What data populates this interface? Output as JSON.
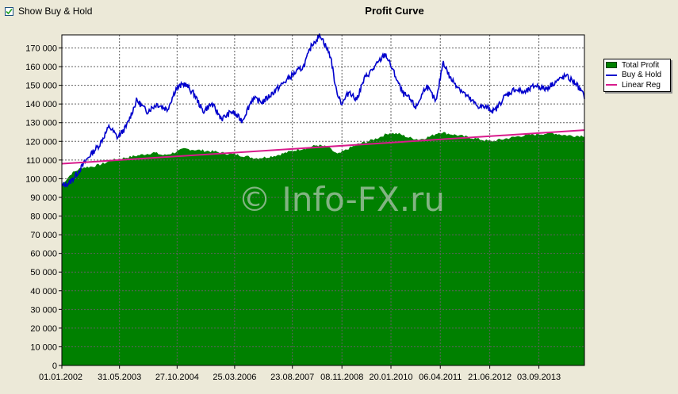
{
  "toolbar": {
    "show_buy_hold_label": "Show Buy & Hold",
    "show_buy_hold_checked": true
  },
  "watermark": "© Info-FX.ru",
  "colors": {
    "background": "#ece9d8",
    "plot_background": "#ffffff",
    "total_profit": "#008000",
    "buy_hold": "#0000cc",
    "linear_reg": "#d81b8c",
    "grid": "#606060"
  },
  "chart_data": {
    "type": "area",
    "title": "Profit Curve",
    "xlabel": "",
    "ylabel": "",
    "grid": true,
    "legend_position": "right",
    "ylim": [
      0,
      177000
    ],
    "xlim": [
      "2002-01-01",
      "2014-10-15"
    ],
    "y_ticks": [
      0,
      10000,
      20000,
      30000,
      40000,
      50000,
      60000,
      70000,
      80000,
      90000,
      100000,
      110000,
      120000,
      130000,
      140000,
      150000,
      160000,
      170000
    ],
    "y_tick_labels": [
      "0",
      "10 000",
      "20 000",
      "30 000",
      "40 000",
      "50 000",
      "60 000",
      "70 000",
      "80 000",
      "90 000",
      "100 000",
      "110 000",
      "120 000",
      "130 000",
      "140 000",
      "150 000",
      "160 000",
      "170 000"
    ],
    "x_tick_labels": [
      "01.01.2002",
      "31.05.2003",
      "27.10.2004",
      "25.03.2006",
      "23.08.2007",
      "08.11.2008",
      "20.01.2010",
      "06.04.2011",
      "21.06.2012",
      "03.09.2013"
    ],
    "x_tick_dates": [
      "2002-01-01",
      "2003-05-31",
      "2004-10-27",
      "2006-03-25",
      "2007-08-23",
      "2008-11-08",
      "2010-01-20",
      "2011-04-06",
      "2012-06-21",
      "2013-09-03"
    ],
    "series": [
      {
        "name": "Total Profit",
        "kind": "area",
        "x": [
          "2002-01-01",
          "2002-04-01",
          "2002-07-01",
          "2002-10-01",
          "2003-01-01",
          "2003-04-01",
          "2003-07-01",
          "2003-10-01",
          "2004-01-01",
          "2004-04-01",
          "2004-07-01",
          "2004-10-01",
          "2005-01-01",
          "2005-04-01",
          "2005-07-01",
          "2005-10-01",
          "2006-01-01",
          "2006-04-01",
          "2006-07-01",
          "2006-10-01",
          "2007-01-01",
          "2007-04-01",
          "2007-07-01",
          "2007-10-01",
          "2008-01-01",
          "2008-04-01",
          "2008-07-01",
          "2008-10-01",
          "2009-01-01",
          "2009-04-01",
          "2009-07-01",
          "2009-10-01",
          "2010-01-01",
          "2010-04-01",
          "2010-07-01",
          "2010-10-01",
          "2011-01-01",
          "2011-04-01",
          "2011-07-01",
          "2011-10-01",
          "2012-01-01",
          "2012-04-01",
          "2012-07-01",
          "2012-10-01",
          "2013-01-01",
          "2013-04-01",
          "2013-07-01",
          "2013-10-01",
          "2014-01-01",
          "2014-04-01",
          "2014-07-01",
          "2014-10-15"
        ],
        "values": [
          97000,
          103000,
          106000,
          106500,
          108000,
          110000,
          111000,
          112000,
          113000,
          114000,
          112500,
          114000,
          116000,
          115500,
          115000,
          114500,
          113500,
          113000,
          112000,
          111000,
          111500,
          112500,
          114000,
          115500,
          116500,
          118000,
          117000,
          113000,
          116000,
          118500,
          120000,
          122000,
          124500,
          124000,
          122000,
          121000,
          122500,
          125000,
          124000,
          123000,
          122000,
          121000,
          120000,
          121000,
          122000,
          123000,
          123500,
          124000,
          124500,
          123500,
          123000,
          123000
        ]
      },
      {
        "name": "Buy & Hold",
        "kind": "line",
        "x": [
          "2002-01-01",
          "2002-03-15",
          "2002-06-01",
          "2002-09-01",
          "2002-12-01",
          "2003-03-01",
          "2003-05-15",
          "2003-08-01",
          "2003-11-01",
          "2004-02-01",
          "2004-05-01",
          "2004-08-01",
          "2004-10-15",
          "2005-01-01",
          "2005-04-01",
          "2005-06-15",
          "2005-09-01",
          "2005-12-01",
          "2006-03-01",
          "2006-06-01",
          "2006-09-01",
          "2006-12-01",
          "2007-03-01",
          "2007-06-01",
          "2007-09-01",
          "2007-12-01",
          "2008-02-15",
          "2008-05-01",
          "2008-08-01",
          "2008-09-15",
          "2008-11-08",
          "2009-01-15",
          "2009-03-15",
          "2009-06-01",
          "2009-09-01",
          "2009-12-01",
          "2010-03-01",
          "2010-05-01",
          "2010-07-01",
          "2010-09-01",
          "2010-12-01",
          "2011-03-01",
          "2011-05-01",
          "2011-07-01",
          "2011-09-01",
          "2011-12-01",
          "2012-03-01",
          "2012-06-01",
          "2012-08-01",
          "2012-11-01",
          "2013-02-01",
          "2013-05-01",
          "2013-08-01",
          "2013-11-01",
          "2014-02-01",
          "2014-05-01",
          "2014-08-01",
          "2014-10-15"
        ],
        "values": [
          96000,
          98000,
          104000,
          112000,
          118000,
          128000,
          122000,
          128000,
          142000,
          136000,
          140000,
          137000,
          148000,
          151000,
          145000,
          136000,
          140000,
          132000,
          136000,
          131000,
          143000,
          141000,
          146000,
          151000,
          156000,
          160000,
          172000,
          177000,
          165000,
          148000,
          140000,
          147000,
          142000,
          154000,
          160000,
          167000,
          155000,
          146000,
          143000,
          138000,
          150000,
          141000,
          163000,
          154000,
          150000,
          144000,
          139000,
          138000,
          136000,
          144000,
          148000,
          146000,
          150000,
          148000,
          152000,
          155000,
          151000,
          144000
        ]
      },
      {
        "name": "Linear Reg",
        "kind": "line",
        "x": [
          "2002-01-01",
          "2014-10-15"
        ],
        "values": [
          108000,
          126000
        ]
      }
    ]
  }
}
